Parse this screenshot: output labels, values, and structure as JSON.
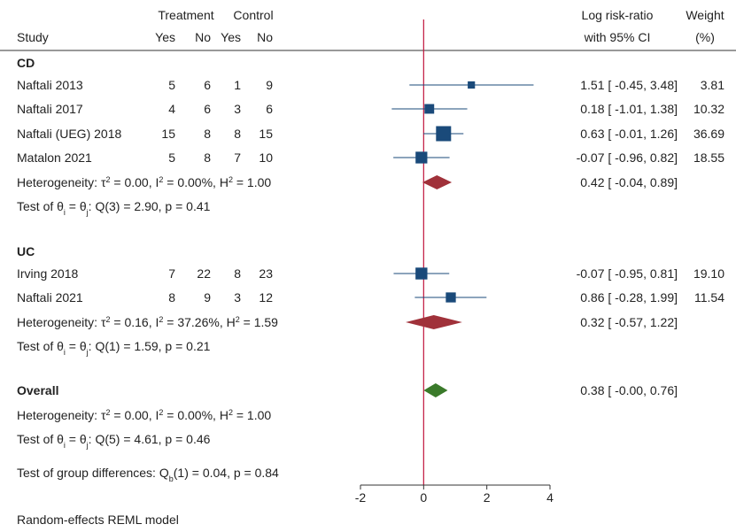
{
  "chart_data": {
    "type": "forest",
    "header": {
      "study": "Study",
      "treatment": "Treatment",
      "control": "Control",
      "t_yes": "Yes",
      "t_no": "No",
      "c_yes": "Yes",
      "c_no": "No",
      "effect_line1": "Log risk-ratio",
      "effect_line2": "with 95% CI",
      "weight_line1": "Weight",
      "weight_line2": "(%)"
    },
    "xlim": [
      -2,
      4
    ],
    "x_ticks": [
      "-2",
      "0",
      "2",
      "4"
    ],
    "reference_line": 0,
    "footer": "Random-effects REML model",
    "test_group_diff": {
      "prefix": "Test of group differences: Q",
      "sub": "b",
      "suffix": "(1) = 0.04, p = 0.84"
    },
    "colors": {
      "study_marker": "#1a4a7a",
      "subgroup_diamond": "#a0313a",
      "overall_diamond": "#3a7a2a",
      "reference_line": "#c0143c"
    },
    "groups": [
      {
        "name": "CD",
        "studies": [
          {
            "label": "Naftali 2013",
            "t_yes": "5",
            "t_no": "6",
            "c_yes": "1",
            "c_no": "9",
            "est": 1.51,
            "lo": -0.45,
            "hi": 3.48,
            "ci_text": "1.51 [ -0.45,  3.48]",
            "weight": 3.81,
            "weight_text": "3.81"
          },
          {
            "label": "Naftali 2017",
            "t_yes": "4",
            "t_no": "6",
            "c_yes": "3",
            "c_no": "6",
            "est": 0.18,
            "lo": -1.01,
            "hi": 1.38,
            "ci_text": "0.18 [ -1.01,  1.38]",
            "weight": 10.32,
            "weight_text": "10.32"
          },
          {
            "label": "Naftali (UEG) 2018",
            "t_yes": "15",
            "t_no": "8",
            "c_yes": "8",
            "c_no": "15",
            "est": 0.63,
            "lo": -0.01,
            "hi": 1.26,
            "ci_text": "0.63 [ -0.01,  1.26]",
            "weight": 36.69,
            "weight_text": "36.69"
          },
          {
            "label": "Matalon 2021",
            "t_yes": "5",
            "t_no": "8",
            "c_yes": "7",
            "c_no": "10",
            "est": -0.07,
            "lo": -0.96,
            "hi": 0.82,
            "ci_text": "-0.07 [ -0.96,  0.82]",
            "weight": 18.55,
            "weight_text": "18.55"
          }
        ],
        "heterogeneity": {
          "tau2": "0.00",
          "i2": "0.00%",
          "h2": "1.00"
        },
        "summary": {
          "est": 0.42,
          "lo": -0.04,
          "hi": 0.89,
          "ci_text": "0.42 [ -0.04,  0.89]"
        },
        "test": {
          "q": "Q(3) = 2.90, p = 0.41"
        }
      },
      {
        "name": "UC",
        "studies": [
          {
            "label": "Irving 2018",
            "t_yes": "7",
            "t_no": "22",
            "c_yes": "8",
            "c_no": "23",
            "est": -0.07,
            "lo": -0.95,
            "hi": 0.81,
            "ci_text": "-0.07 [ -0.95,  0.81]",
            "weight": 19.1,
            "weight_text": "19.10"
          },
          {
            "label": "Naftali 2021",
            "t_yes": "8",
            "t_no": "9",
            "c_yes": "3",
            "c_no": "12",
            "est": 0.86,
            "lo": -0.28,
            "hi": 1.99,
            "ci_text": "0.86 [ -0.28,  1.99]",
            "weight": 11.54,
            "weight_text": "11.54"
          }
        ],
        "heterogeneity": {
          "tau2": "0.16",
          "i2": "37.26%",
          "h2": "1.59"
        },
        "summary": {
          "est": 0.32,
          "lo": -0.57,
          "hi": 1.22,
          "ci_text": "0.32 [ -0.57,  1.22]"
        },
        "test": {
          "q": "Q(1) = 1.59, p = 0.21"
        }
      }
    ],
    "overall": {
      "name": "Overall",
      "heterogeneity": {
        "tau2": "0.00",
        "i2": "0.00%",
        "h2": "1.00"
      },
      "summary": {
        "est": 0.38,
        "lo": -0.0,
        "hi": 0.76,
        "ci_text": "0.38 [ -0.00,  0.76]"
      },
      "test": {
        "q": "Q(5) = 4.61, p = 0.46"
      }
    }
  }
}
